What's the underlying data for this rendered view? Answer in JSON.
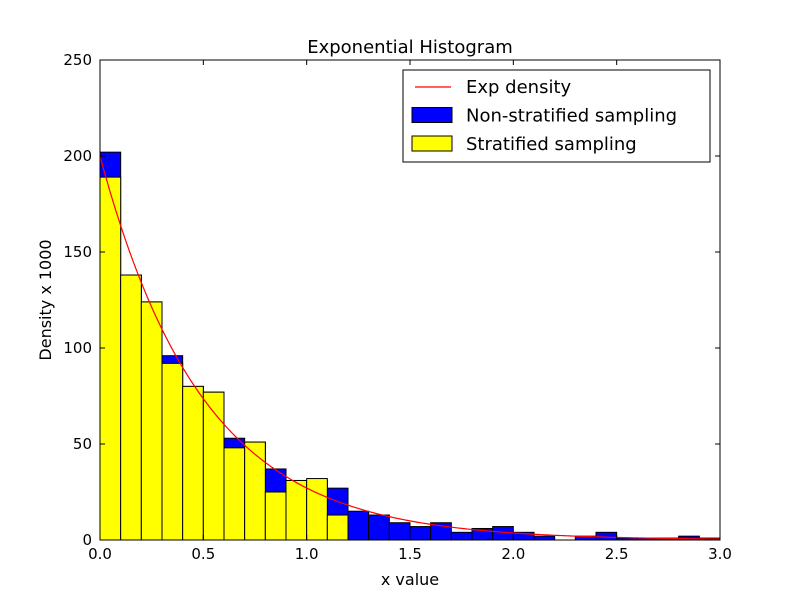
{
  "chart_data": {
    "type": "bar",
    "title": "Exponential Histogram",
    "xlabel": "x value",
    "ylabel": "Density x 1000",
    "xlim": [
      0.0,
      3.0
    ],
    "ylim": [
      0,
      250
    ],
    "xticks": [
      "0.0",
      "0.5",
      "1.0",
      "1.5",
      "2.0",
      "2.5",
      "3.0"
    ],
    "yticks": [
      "0",
      "50",
      "100",
      "150",
      "200",
      "250"
    ],
    "bin_width": 0.1,
    "bin_starts": [
      0.0,
      0.1,
      0.2,
      0.3,
      0.4,
      0.5,
      0.6,
      0.7,
      0.8,
      0.9,
      1.0,
      1.1,
      1.2,
      1.3,
      1.4,
      1.5,
      1.6,
      1.7,
      1.8,
      1.9,
      2.0,
      2.1,
      2.2,
      2.3,
      2.4,
      2.5,
      2.6,
      2.7,
      2.8,
      2.9
    ],
    "series": [
      {
        "name": "Non-stratified sampling",
        "kind": "bar",
        "color": "#0000ff",
        "values": [
          202,
          138,
          124,
          96,
          80,
          77,
          53,
          51,
          37,
          31,
          31,
          27,
          15,
          13,
          9,
          7,
          9,
          4,
          6,
          7,
          4,
          2,
          0,
          2,
          4,
          1,
          1,
          1,
          2,
          1
        ]
      },
      {
        "name": "Stratified sampling",
        "kind": "bar",
        "color": "#ffff00",
        "values": [
          189,
          138,
          124,
          92,
          80,
          77,
          48,
          51,
          25,
          31,
          32,
          13,
          0,
          0,
          0,
          0,
          0,
          0,
          0,
          0,
          0,
          0,
          0,
          0,
          0,
          0,
          0,
          0,
          0,
          0
        ]
      },
      {
        "name": "Exp density",
        "kind": "line",
        "color": "#ff0000",
        "function": "200*exp(-2x)"
      }
    ],
    "legend": {
      "placement": "top-right",
      "entries": [
        "Exp density",
        "Non-stratified sampling",
        "Stratified sampling"
      ]
    },
    "grid": false
  }
}
